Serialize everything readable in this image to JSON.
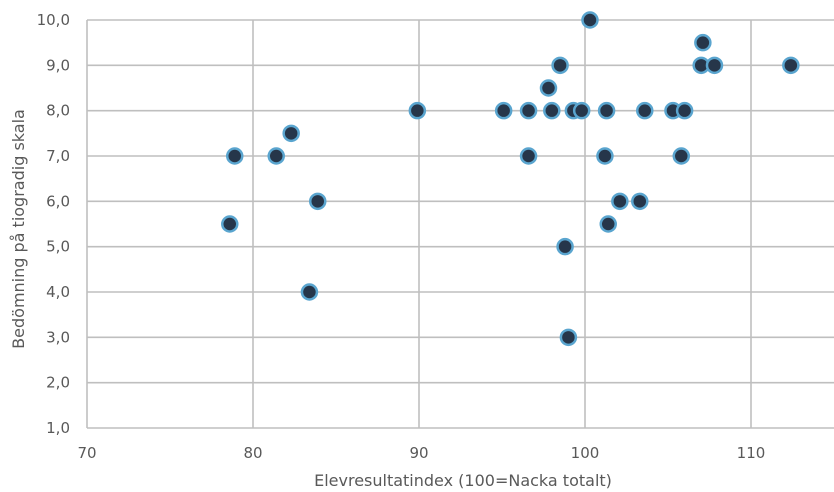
{
  "chart_data": {
    "type": "scatter",
    "title": "",
    "xlabel": "Elevresultatindex (100=Nacka totalt)",
    "ylabel": "Bedömning på tiogradig skala",
    "xlim": [
      70,
      115
    ],
    "ylim": [
      1,
      10
    ],
    "x_ticks": [
      70,
      80,
      90,
      100,
      110
    ],
    "y_ticks": [
      "1,0",
      "2,0",
      "3,0",
      "4,0",
      "5,0",
      "6,0",
      "7,0",
      "8,0",
      "9,0",
      "10,0"
    ],
    "grid": true,
    "marker_fill": "#26364a",
    "marker_edge": "#5aa5cf",
    "series": [
      {
        "points": [
          {
            "x": 78.6,
            "y": 5.5
          },
          {
            "x": 78.9,
            "y": 7.0
          },
          {
            "x": 81.4,
            "y": 7.0
          },
          {
            "x": 82.3,
            "y": 7.5
          },
          {
            "x": 83.4,
            "y": 4.0
          },
          {
            "x": 83.9,
            "y": 6.0
          },
          {
            "x": 89.9,
            "y": 8.0
          },
          {
            "x": 95.1,
            "y": 8.0
          },
          {
            "x": 96.6,
            "y": 8.0
          },
          {
            "x": 96.6,
            "y": 7.0
          },
          {
            "x": 97.8,
            "y": 8.5
          },
          {
            "x": 98.0,
            "y": 8.0
          },
          {
            "x": 98.5,
            "y": 9.0
          },
          {
            "x": 98.8,
            "y": 5.0
          },
          {
            "x": 99.0,
            "y": 3.0
          },
          {
            "x": 99.3,
            "y": 8.0
          },
          {
            "x": 99.8,
            "y": 8.0
          },
          {
            "x": 100.3,
            "y": 10.0
          },
          {
            "x": 101.2,
            "y": 7.0
          },
          {
            "x": 101.3,
            "y": 8.0
          },
          {
            "x": 101.4,
            "y": 5.5
          },
          {
            "x": 102.1,
            "y": 6.0
          },
          {
            "x": 103.3,
            "y": 6.0
          },
          {
            "x": 103.6,
            "y": 8.0
          },
          {
            "x": 105.3,
            "y": 8.0
          },
          {
            "x": 105.8,
            "y": 7.0
          },
          {
            "x": 106.0,
            "y": 8.0
          },
          {
            "x": 107.0,
            "y": 9.0
          },
          {
            "x": 107.1,
            "y": 9.5
          },
          {
            "x": 107.8,
            "y": 9.0
          },
          {
            "x": 112.4,
            "y": 9.0
          }
        ]
      }
    ]
  }
}
